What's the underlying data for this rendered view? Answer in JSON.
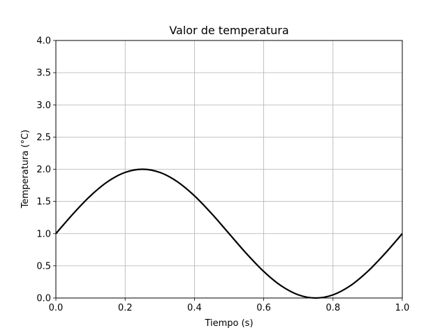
{
  "chart_data": {
    "type": "line",
    "title": "Valor de temperatura",
    "xlabel": "Tiempo (s)",
    "ylabel": "Temperatura (°C)",
    "xlim": [
      0.0,
      1.0
    ],
    "ylim": [
      0.0,
      4.0
    ],
    "x_ticks": [
      "0.0",
      "0.2",
      "0.4",
      "0.6",
      "0.8",
      "1.0"
    ],
    "y_ticks": [
      "0.0",
      "0.5",
      "1.0",
      "1.5",
      "2.0",
      "2.5",
      "3.0",
      "3.5",
      "4.0"
    ],
    "grid": true,
    "series": [
      {
        "color": "#000000",
        "x": [
          0.0,
          0.05,
          0.1,
          0.15,
          0.2,
          0.25,
          0.3,
          0.35,
          0.4,
          0.45,
          0.5,
          0.55,
          0.6,
          0.65,
          0.7,
          0.75,
          0.8,
          0.85,
          0.9,
          0.95,
          1.0
        ],
        "y": [
          1.0,
          1.309,
          1.588,
          1.809,
          1.951,
          2.0,
          1.951,
          1.809,
          1.588,
          1.309,
          1.0,
          0.691,
          0.412,
          0.191,
          0.049,
          0.0,
          0.049,
          0.191,
          0.412,
          0.691,
          1.0
        ]
      }
    ]
  }
}
